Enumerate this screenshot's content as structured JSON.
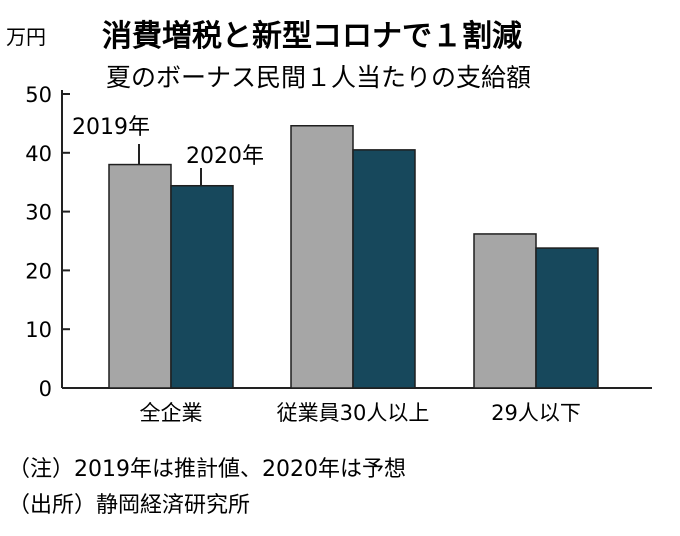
{
  "header": {
    "unit": "万円",
    "title": "消費増税と新型コロナで１割減",
    "subtitle": "夏のボーナス民間１人当たりの支給額"
  },
  "chart_data": {
    "type": "bar",
    "title": "消費増税と新型コロナで１割減",
    "subtitle": "夏のボーナス民間１人当たりの支給額",
    "ylabel": "万円",
    "xlabel": "",
    "ylim": [
      0,
      50
    ],
    "yticks": [
      "0",
      "10",
      "20",
      "30",
      "40",
      "50"
    ],
    "categories": [
      "全企業",
      "従業員30人以上",
      "29人以下"
    ],
    "series": [
      {
        "name": "2019年",
        "values": [
          38.0,
          44.6,
          26.2
        ],
        "color": "#a6a6a6"
      },
      {
        "name": "2020年",
        "values": [
          34.4,
          40.5,
          23.8
        ],
        "color": "#17485c"
      }
    ],
    "grid": false,
    "legend": "inline-labels"
  },
  "notes": {
    "note": "（注）2019年は推計値、2020年は予想",
    "source": "（出所）静岡経済研究所"
  }
}
